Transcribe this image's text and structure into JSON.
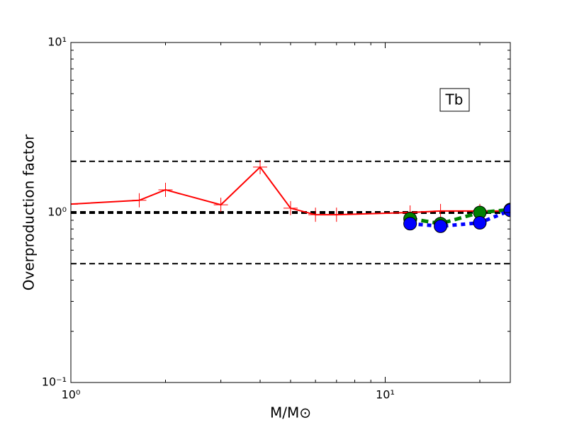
{
  "chart_data": {
    "type": "line",
    "log_x": true,
    "log_y": true,
    "xlabel": "M/M⊙",
    "ylabel": "Overproduction factor",
    "annotation": "Tb",
    "xlim": [
      1,
      25
    ],
    "ylim": [
      0.1,
      10
    ],
    "xticks": [
      {
        "value": 1,
        "label": "10⁰"
      },
      {
        "value": 10,
        "label": "10¹"
      }
    ],
    "yticks": [
      {
        "value": 0.1,
        "label": "10⁻¹"
      },
      {
        "value": 1,
        "label": "10⁰"
      },
      {
        "value": 10,
        "label": "10¹"
      }
    ],
    "xminorticks": [
      2,
      3,
      4,
      5,
      6,
      7,
      8,
      9,
      20
    ],
    "yminorticks": [
      0.2,
      0.3,
      0.4,
      0.5,
      0.6,
      0.7,
      0.8,
      0.9,
      2,
      3,
      4,
      5,
      6,
      7,
      8,
      9
    ],
    "hlines": [
      {
        "value": 2,
        "width": 2,
        "dash": "8,5"
      },
      {
        "value": 1,
        "width": 4,
        "dash": "8,5"
      },
      {
        "value": 0.5,
        "width": 2,
        "dash": "8,5"
      }
    ],
    "series": [
      {
        "color": "#ff0000",
        "linestyle": "solid",
        "marker": "plus",
        "x": [
          1,
          1.65,
          2,
          3,
          4,
          5,
          6,
          7,
          12,
          15,
          20,
          25
        ],
        "values": [
          1.12,
          1.18,
          1.36,
          1.11,
          1.85,
          1.06,
          0.97,
          0.97,
          1.0,
          1.02,
          1.02,
          1.02
        ]
      },
      {
        "color": "#008000",
        "linestyle": "dashed",
        "marker": "circle",
        "x": [
          12,
          15,
          20,
          25
        ],
        "values": [
          0.92,
          0.86,
          1.0,
          1.04
        ]
      },
      {
        "color": "#0000ff",
        "linestyle": "dotted",
        "marker": "circle",
        "x": [
          12,
          15,
          20,
          25
        ],
        "values": [
          0.86,
          0.83,
          0.87,
          1.03
        ]
      }
    ]
  }
}
